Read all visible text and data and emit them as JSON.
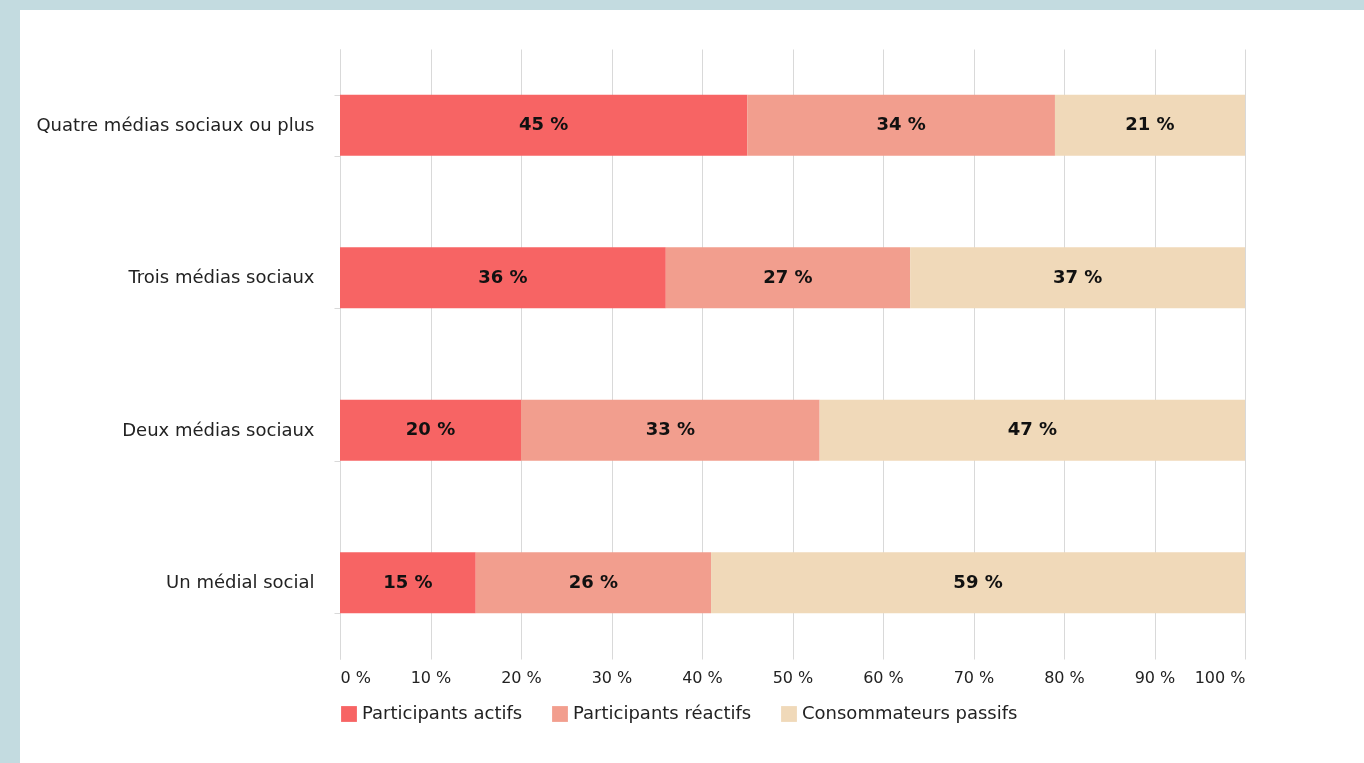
{
  "chart_data": {
    "type": "bar",
    "orientation": "horizontal",
    "stacked": true,
    "categories": [
      "Quatre médias sociaux ou plus",
      "Trois médias sociaux",
      "Deux médias sociaux",
      "Un médial social"
    ],
    "series": [
      {
        "name": "Participants actifs",
        "color": "#f76464",
        "values": [
          45,
          36,
          20,
          15
        ],
        "value_labels": [
          "45 %",
          "36 %",
          "20 %",
          "15 %"
        ]
      },
      {
        "name": "Participants réactifs",
        "color": "#f29e8e",
        "values": [
          34,
          27,
          33,
          26
        ],
        "value_labels": [
          "34 %",
          "27 %",
          "33 %",
          "26 %"
        ]
      },
      {
        "name": "Consommateurs passifs",
        "color": "#f0d9b9",
        "values": [
          21,
          37,
          47,
          59
        ],
        "value_labels": [
          "21 %",
          "37 %",
          "47 %",
          "59 %"
        ]
      }
    ],
    "xlim": [
      0,
      100
    ],
    "xticks": [
      {
        "value": 0,
        "label": "0 %"
      },
      {
        "value": 10,
        "label": "10 %"
      },
      {
        "value": 20,
        "label": "20 %"
      },
      {
        "value": 30,
        "label": "30 %"
      },
      {
        "value": 40,
        "label": "40 %"
      },
      {
        "value": 50,
        "label": "50 %"
      },
      {
        "value": 60,
        "label": "60 %"
      },
      {
        "value": 70,
        "label": "70 %"
      },
      {
        "value": 80,
        "label": "80 %"
      },
      {
        "value": 90,
        "label": "90 %"
      },
      {
        "value": 100,
        "label": "100 %"
      }
    ],
    "grid": "x",
    "legend": "bottom"
  }
}
